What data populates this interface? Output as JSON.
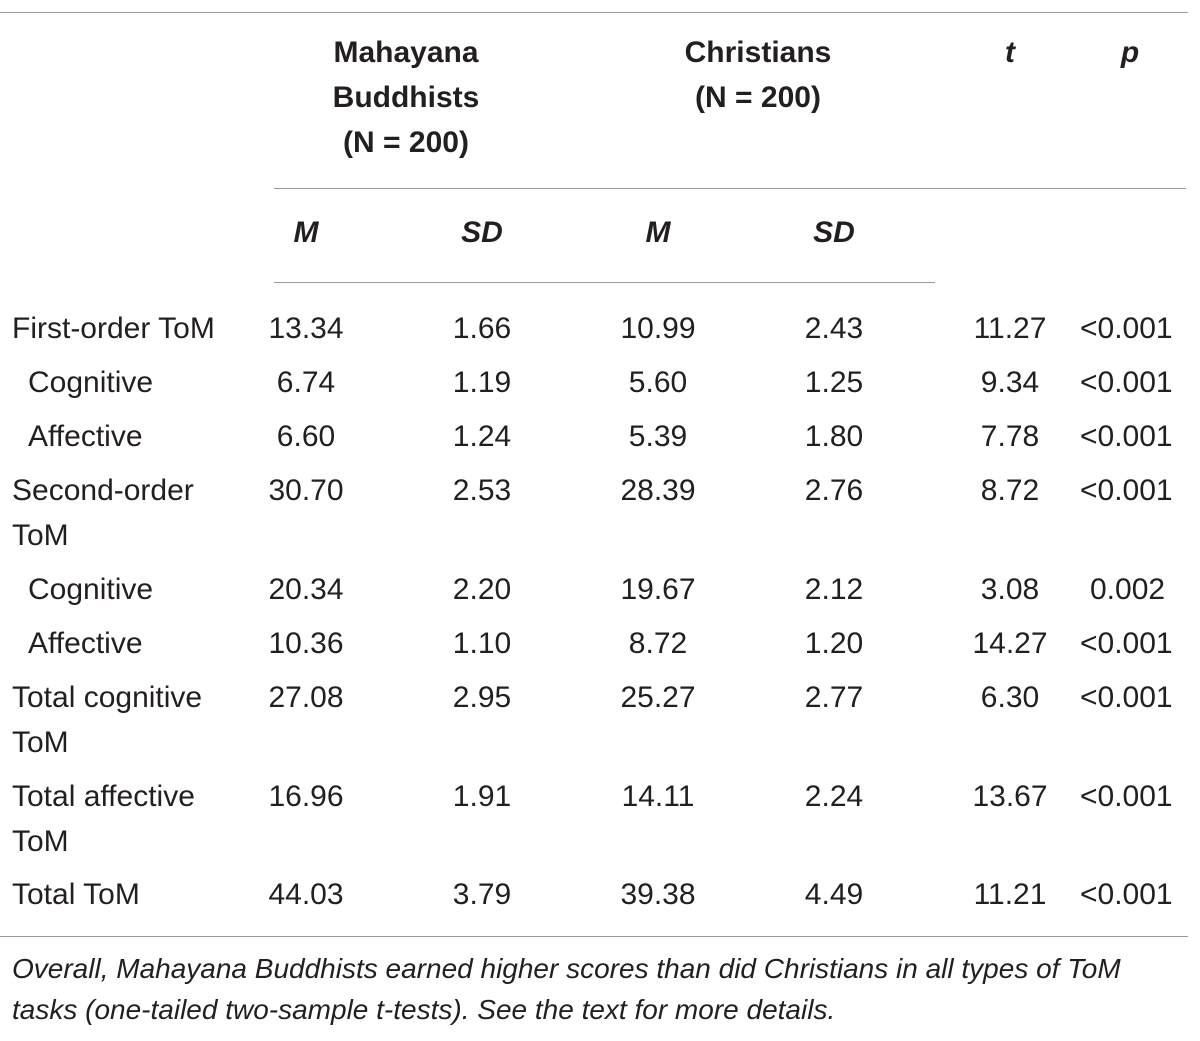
{
  "header": {
    "group1_line1": "Mahayana",
    "group1_line2": "Buddhists",
    "group1_line3": "(N = 200)",
    "group2_line1": "Christians",
    "group2_line2": "(N = 200)",
    "t": "t",
    "p": "p",
    "m1": "M",
    "sd1": "SD",
    "m2": "M",
    "sd2": "SD"
  },
  "rows": [
    {
      "label": "First-order ToM",
      "m1": "13.34",
      "sd1": "1.66",
      "m2": "10.99",
      "sd2": "2.43",
      "t": "11.27",
      "p": "<0.001"
    },
    {
      "label": "Cognitive",
      "m1": "6.74",
      "sd1": "1.19",
      "m2": "5.60",
      "sd2": "1.25",
      "t": "9.34",
      "p": "<0.001"
    },
    {
      "label": "Affective",
      "m1": "6.60",
      "sd1": "1.24",
      "m2": "5.39",
      "sd2": "1.80",
      "t": "7.78",
      "p": "<0.001"
    },
    {
      "label": "Second-order ToM",
      "m1": "30.70",
      "sd1": "2.53",
      "m2": "28.39",
      "sd2": "2.76",
      "t": "8.72",
      "p": "<0.001"
    },
    {
      "label": "Cognitive",
      "m1": "20.34",
      "sd1": "2.20",
      "m2": "19.67",
      "sd2": "2.12",
      "t": "3.08",
      "p": "0.002"
    },
    {
      "label": "Affective",
      "m1": "10.36",
      "sd1": "1.10",
      "m2": "8.72",
      "sd2": "1.20",
      "t": "14.27",
      "p": "<0.001"
    },
    {
      "label": "Total cognitive ToM",
      "m1": "27.08",
      "sd1": "2.95",
      "m2": "25.27",
      "sd2": "2.77",
      "t": "6.30",
      "p": "<0.001"
    },
    {
      "label": "Total affective ToM",
      "m1": "16.96",
      "sd1": "1.91",
      "m2": "14.11",
      "sd2": "2.24",
      "t": "13.67",
      "p": "<0.001"
    },
    {
      "label": "Total ToM",
      "m1": "44.03",
      "sd1": "3.79",
      "m2": "39.38",
      "sd2": "4.49",
      "t": "11.21",
      "p": "<0.001"
    }
  ],
  "footnote": "Overall, Mahayana Buddhists earned higher scores than did Christians in all types of ToM tasks (one-tailed two-sample t-tests). See the text for more details."
}
